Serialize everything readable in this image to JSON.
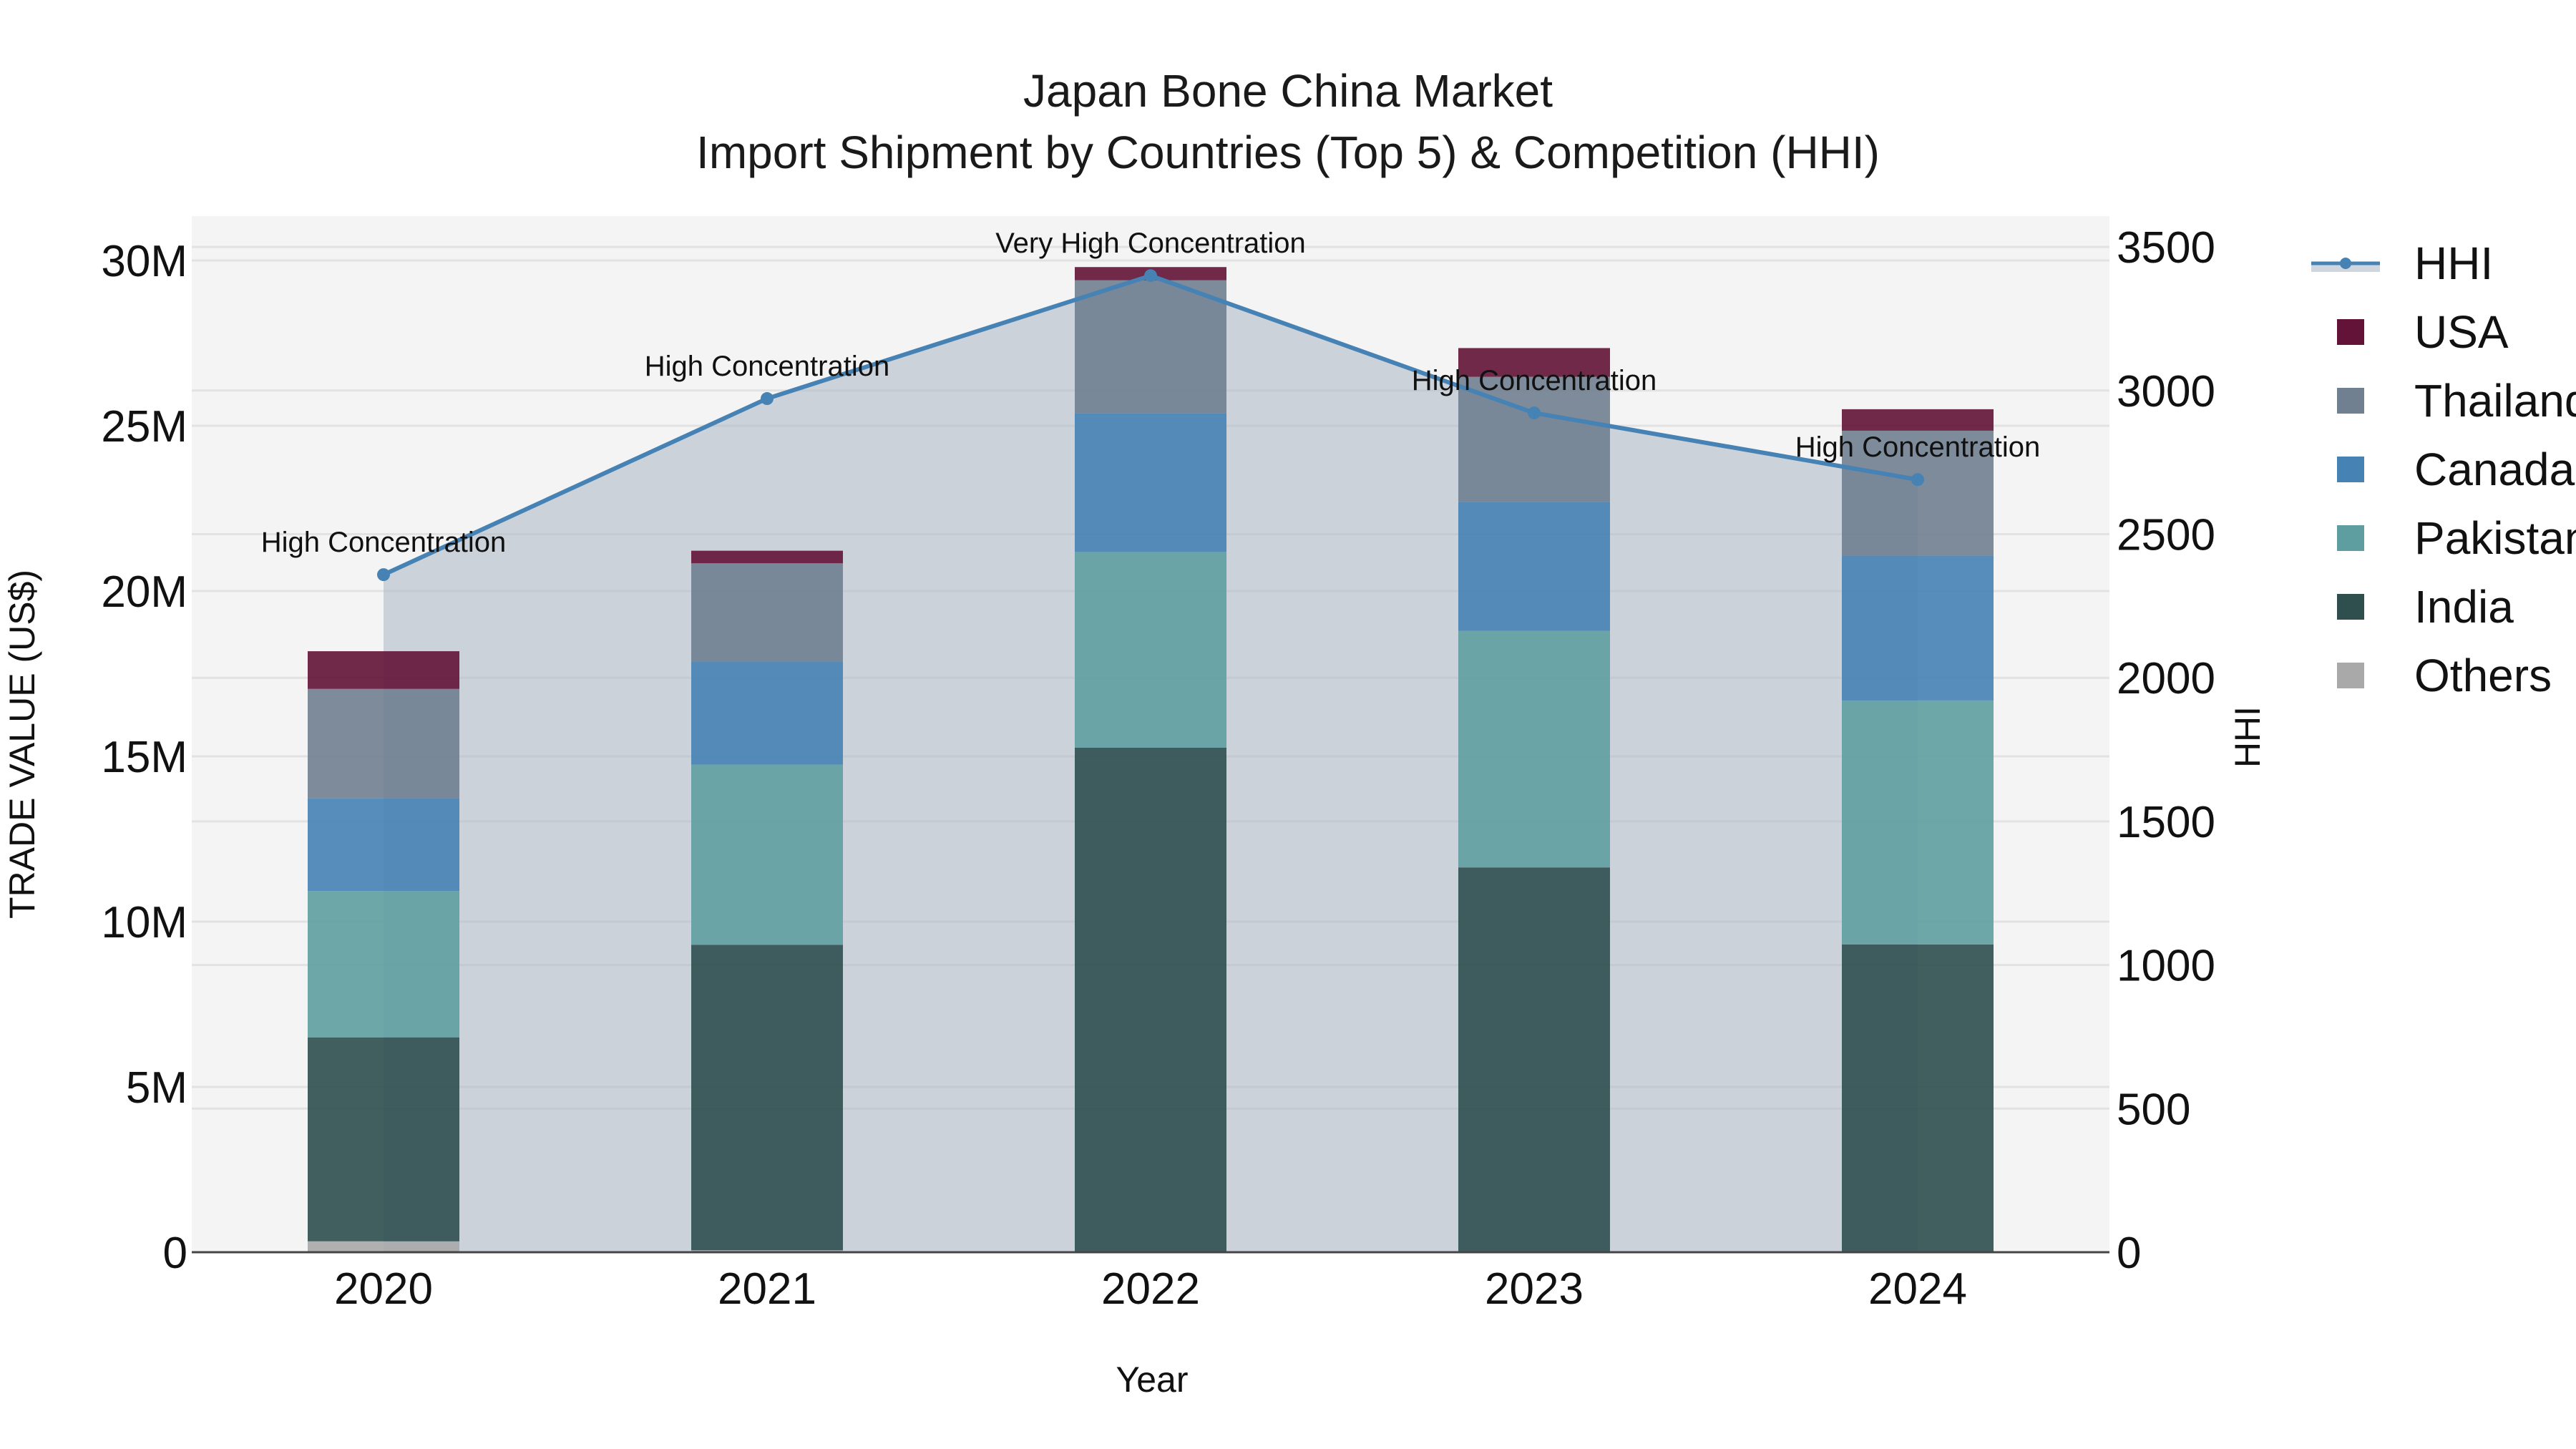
{
  "title": {
    "line1": "Japan Bone China Market",
    "line2": "Import Shipment by Countries (Top 5) & Competition (HHI)"
  },
  "axes": {
    "x_title": "Year",
    "y_left_title": "TRADE VALUE (US$)",
    "y_right_title": "HHI",
    "y_left_ticks": [
      "0",
      "5M",
      "10M",
      "15M",
      "20M",
      "25M",
      "30M"
    ],
    "y_right_ticks": [
      "0",
      "500",
      "1000",
      "1500",
      "2000",
      "2500",
      "3000",
      "3500"
    ],
    "x_ticks": [
      "2020",
      "2021",
      "2022",
      "2023",
      "2024"
    ]
  },
  "legend": [
    {
      "label": "HHI",
      "type": "line",
      "color": "#4682B4"
    },
    {
      "label": "USA",
      "type": "bar",
      "color": "#631337"
    },
    {
      "label": "Thailand",
      "type": "bar",
      "color": "#708090"
    },
    {
      "label": "Canada",
      "type": "bar",
      "color": "#4682B4"
    },
    {
      "label": "Pakistan",
      "type": "bar",
      "color": "#5F9EA0"
    },
    {
      "label": "India",
      "type": "bar",
      "color": "#2F4F4F"
    },
    {
      "label": "Others",
      "type": "bar",
      "color": "#A9A9A9"
    }
  ],
  "colors": {
    "plot_bg": "#F4F4F4",
    "hhi_fill": "rgba(176,186,200,0.6)",
    "hhi_line": "#4682B4",
    "grid": "#E2E2E2"
  },
  "chart_data": {
    "type": "bar",
    "subtype": "stacked bar with secondary-axis line/area",
    "title": "Japan Bone China Market — Import Shipment by Countries (Top 5) & Competition (HHI)",
    "xlabel": "Year",
    "ylabel": "TRADE VALUE (US$)",
    "y2label": "HHI",
    "ylim": [
      0,
      31300000
    ],
    "y2lim": [
      0,
      3600
    ],
    "grid": true,
    "legend_position": "right",
    "categories": [
      "2020",
      "2021",
      "2022",
      "2023",
      "2024"
    ],
    "series": [
      {
        "name": "Others",
        "color": "#A9A9A9",
        "values": [
          330000,
          60000,
          0,
          0,
          0
        ]
      },
      {
        "name": "India",
        "color": "#2F4F4F",
        "values": [
          6170000,
          9240000,
          15260000,
          11640000,
          9310000
        ]
      },
      {
        "name": "Pakistan",
        "color": "#5F9EA0",
        "values": [
          4430000,
          5450000,
          5930000,
          7160000,
          7380000
        ]
      },
      {
        "name": "Canada",
        "color": "#4682B4",
        "values": [
          2810000,
          3120000,
          4180000,
          3900000,
          4380000
        ]
      },
      {
        "name": "Thailand",
        "color": "#708090",
        "values": [
          3300000,
          2970000,
          4030000,
          3780000,
          3780000
        ]
      },
      {
        "name": "USA",
        "color": "#631337",
        "values": [
          1140000,
          380000,
          400000,
          870000,
          650000
        ]
      }
    ],
    "totals": [
      18180000,
      21220000,
      29800000,
      27350000,
      25500000
    ],
    "line_series": {
      "name": "HHI",
      "axis": "right",
      "color": "#4682B4",
      "fill": "tozeroy",
      "values": [
        2359,
        2972,
        3400,
        2922,
        2690
      ],
      "annotations": [
        "High Concentration",
        "High Concentration",
        "Very High Concentration",
        "High Concentration",
        "High Concentration"
      ]
    }
  }
}
